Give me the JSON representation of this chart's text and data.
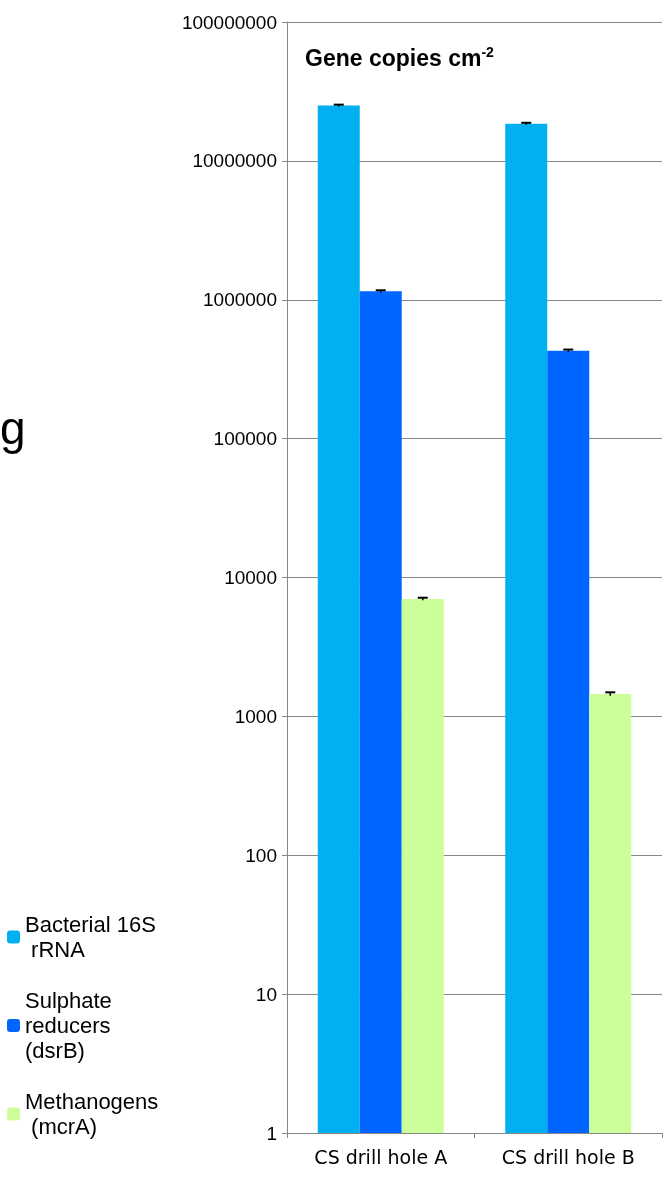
{
  "chart_data": {
    "type": "bar",
    "title": "Gene copies cm$^{-2}$",
    "categories": [
      "CS drill hole A",
      "CS drill hole B"
    ],
    "series": [
      {
        "name": "Bacterial 16S rRNA",
        "color": "#00b0f0",
        "values": [
          25000000,
          18500000
        ],
        "errors": [
          400000,
          300000
        ]
      },
      {
        "name": "Sulphate reducers (dsrB)",
        "color": "#0066ff",
        "values": [
          1150000,
          430000
        ],
        "errors": [
          20000,
          8000
        ]
      },
      {
        "name": "Methanogens (mcrA)",
        "color": "#ccff99",
        "values": [
          7000,
          1450
        ],
        "errors": [
          150,
          40
        ]
      }
    ],
    "log": "y",
    "ylim": [
      1,
      100000000
    ],
    "yticks": [
      1,
      10,
      100,
      1000,
      10000,
      100000,
      1000000,
      10000000,
      100000000
    ],
    "grid": "y",
    "legend": "left",
    "annotations": [
      "g"
    ]
  }
}
